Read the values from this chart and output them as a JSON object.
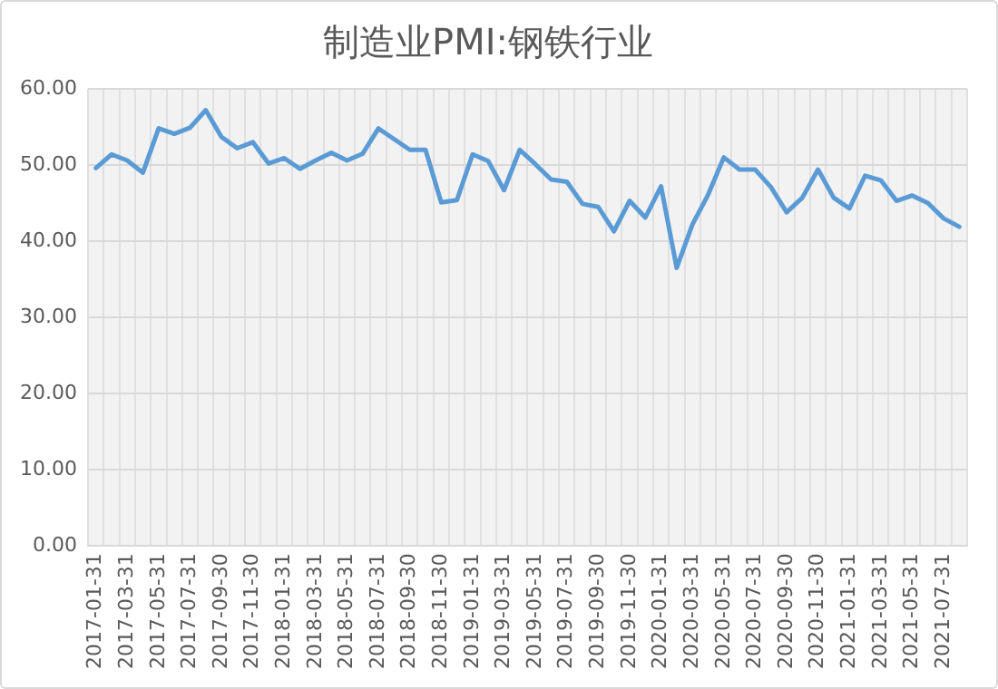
{
  "chart_data": {
    "type": "line",
    "title": "制造业PMI:钢铁行业",
    "categories": [
      "2017-01-31",
      null,
      "2017-03-31",
      null,
      "2017-05-31",
      null,
      "2017-07-31",
      null,
      "2017-09-30",
      null,
      "2017-11-30",
      null,
      "2018-01-31",
      null,
      "2018-03-31",
      null,
      "2018-05-31",
      null,
      "2018-07-31",
      null,
      "2018-09-30",
      null,
      "2018-11-30",
      null,
      "2019-01-31",
      null,
      "2019-03-31",
      null,
      "2019-05-31",
      null,
      "2019-07-31",
      null,
      "2019-09-30",
      null,
      "2019-11-30",
      null,
      "2020-01-31",
      null,
      "2020-03-31",
      null,
      "2020-05-31",
      null,
      "2020-07-31",
      null,
      "2020-09-30",
      null,
      "2020-11-30",
      null,
      "2021-01-31",
      null,
      "2021-03-31",
      null,
      "2021-05-31",
      null,
      "2021-07-31",
      null
    ],
    "series": [
      {
        "color": "#5b9bd5",
        "values": [
          49.6,
          51.4,
          50.6,
          49.0,
          54.8,
          54.1,
          54.9,
          57.2,
          53.7,
          52.2,
          53.0,
          50.2,
          50.9,
          49.5,
          50.6,
          51.6,
          50.6,
          51.5,
          54.8,
          53.4,
          52.0,
          52.0,
          45.1,
          45.4,
          51.4,
          50.5,
          46.7,
          52.0,
          50.1,
          48.1,
          47.8,
          44.9,
          44.5,
          41.3,
          45.3,
          43.1,
          47.2,
          36.5,
          42.2,
          46.1,
          51.0,
          49.4,
          49.4,
          47.1,
          43.8,
          45.7,
          49.4,
          45.7,
          44.3,
          48.6,
          48.0,
          45.3,
          46.0,
          45.0,
          43.0,
          41.9
        ]
      }
    ],
    "ylim": [
      0,
      60
    ],
    "yticks": [
      {
        "value": 0,
        "label": "0.00"
      },
      {
        "value": 10,
        "label": "10.00"
      },
      {
        "value": 20,
        "label": "20.00"
      },
      {
        "value": 30,
        "label": "30.00"
      },
      {
        "value": 40,
        "label": "40.00"
      },
      {
        "value": 50,
        "label": "50.00"
      },
      {
        "value": 60,
        "label": "60.00"
      }
    ],
    "grid": true,
    "marker": "none",
    "line_style": "solid"
  }
}
